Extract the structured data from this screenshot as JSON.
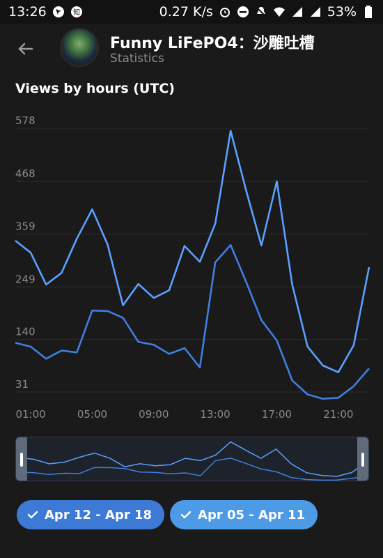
{
  "status_bar": {
    "time": "13:26",
    "speed": "0.27 K/s",
    "battery": "53%"
  },
  "header": {
    "title": "Funny LiFePO4：沙雕吐槽",
    "subtitle": "Statistics"
  },
  "chart_title": "Views by hours (UTC)",
  "colors": {
    "series1": "#5aa0ff",
    "series2": "#3f7fe0",
    "grid": "#2e2e2e",
    "tick": "#8a8a8a"
  },
  "chart_data": {
    "type": "line",
    "title": "Views by hours (UTC)",
    "x": [
      "00:00",
      "01:00",
      "02:00",
      "03:00",
      "04:00",
      "05:00",
      "06:00",
      "07:00",
      "08:00",
      "09:00",
      "10:00",
      "11:00",
      "12:00",
      "13:00",
      "14:00",
      "15:00",
      "16:00",
      "17:00",
      "18:00",
      "19:00",
      "20:00",
      "21:00",
      "22:00",
      "23:00"
    ],
    "x_tick_labels": [
      "01:00",
      "05:00",
      "09:00",
      "13:00",
      "17:00",
      "21:00"
    ],
    "y_ticks": [
      31,
      140,
      249,
      359,
      468,
      578
    ],
    "ylim": [
      31,
      578
    ],
    "series": [
      {
        "values": [
          345,
          320,
          254,
          278,
          349,
          410,
          337,
          211,
          255,
          226,
          242,
          334,
          301,
          380,
          573,
          450,
          335,
          468,
          254,
          125,
          86,
          72,
          128,
          290
        ]
      },
      {
        "values": [
          133,
          125,
          100,
          117,
          113,
          200,
          199,
          185,
          135,
          129,
          110,
          122,
          82,
          300,
          336,
          260,
          180,
          138,
          55,
          26,
          17,
          19,
          43,
          80
        ]
      }
    ]
  },
  "filters": [
    {
      "label": "Apr 12 - Apr 18"
    },
    {
      "label": "Apr 05 - Apr 11"
    }
  ]
}
